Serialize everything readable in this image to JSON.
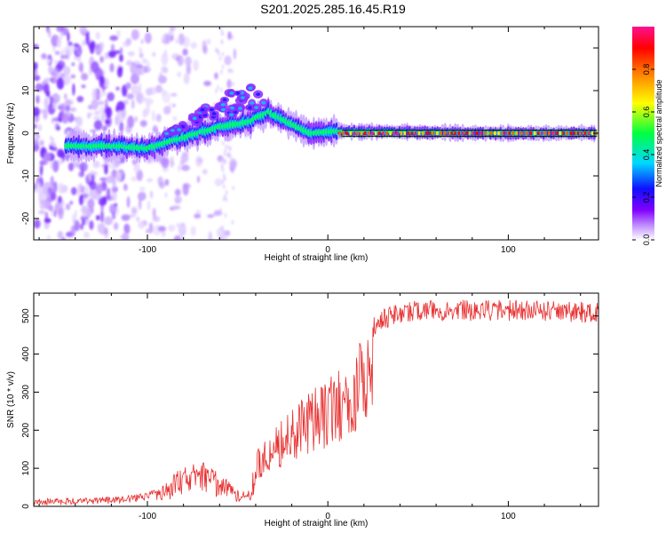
{
  "title": "S201.2025.285.16.45.R19",
  "chart_data": [
    {
      "type": "heatmap",
      "xlabel": "Height of straight line (km)",
      "ylabel": "Frequency (Hz)",
      "xlim": [
        -163,
        150
      ],
      "ylim": [
        -25,
        25
      ],
      "xticks": [
        -100,
        0,
        100
      ],
      "yticks": [
        -20,
        -10,
        0,
        10,
        20
      ],
      "colorbar": {
        "label": "Normalized spectral amplitude",
        "range": [
          0,
          1
        ],
        "ticks": [
          "0.0",
          "0.2",
          "0.4",
          "0.6",
          "0.8"
        ],
        "colors": [
          "#ffffff",
          "#8000ff",
          "#0000ff",
          "#00ffff",
          "#00ff00",
          "#ffff00",
          "#ff8000",
          "#ff0000",
          "#ff0080"
        ]
      },
      "ridge": [
        {
          "x": -145,
          "y": -3.0
        },
        {
          "x": -120,
          "y": -3.0
        },
        {
          "x": -100,
          "y": -3.5
        },
        {
          "x": -80,
          "y": -1.0
        },
        {
          "x": -60,
          "y": 1.5
        },
        {
          "x": -45,
          "y": 2.5
        },
        {
          "x": -33,
          "y": 5.0
        },
        {
          "x": -22,
          "y": 2.5
        },
        {
          "x": -10,
          "y": 0.0
        },
        {
          "x": 5,
          "y": 0.5
        },
        {
          "x": 50,
          "y": 0.2
        },
        {
          "x": 100,
          "y": 0.0
        },
        {
          "x": 148,
          "y": 0.0
        }
      ]
    },
    {
      "type": "line",
      "xlabel": "Height of straight line (km)",
      "ylabel": "SNR (10 * v/v)",
      "xlim": [
        -163,
        150
      ],
      "ylim": [
        0,
        560
      ],
      "xticks": [
        -100,
        0,
        100
      ],
      "yticks": [
        0,
        100,
        200,
        300,
        400,
        500
      ],
      "color": "#e83030",
      "envelope": [
        {
          "x": -163,
          "y": 20
        },
        {
          "x": -120,
          "y": 25
        },
        {
          "x": -100,
          "y": 35
        },
        {
          "x": -90,
          "y": 60
        },
        {
          "x": -80,
          "y": 110
        },
        {
          "x": -70,
          "y": 120
        },
        {
          "x": -60,
          "y": 95
        },
        {
          "x": -50,
          "y": 45
        },
        {
          "x": -43,
          "y": 40
        },
        {
          "x": -40,
          "y": 150
        },
        {
          "x": -30,
          "y": 200
        },
        {
          "x": -20,
          "y": 260
        },
        {
          "x": -10,
          "y": 300
        },
        {
          "x": 0,
          "y": 340
        },
        {
          "x": 10,
          "y": 390
        },
        {
          "x": 20,
          "y": 450
        },
        {
          "x": 30,
          "y": 500
        },
        {
          "x": 50,
          "y": 520
        },
        {
          "x": 100,
          "y": 520
        },
        {
          "x": 150,
          "y": 515
        }
      ]
    }
  ]
}
